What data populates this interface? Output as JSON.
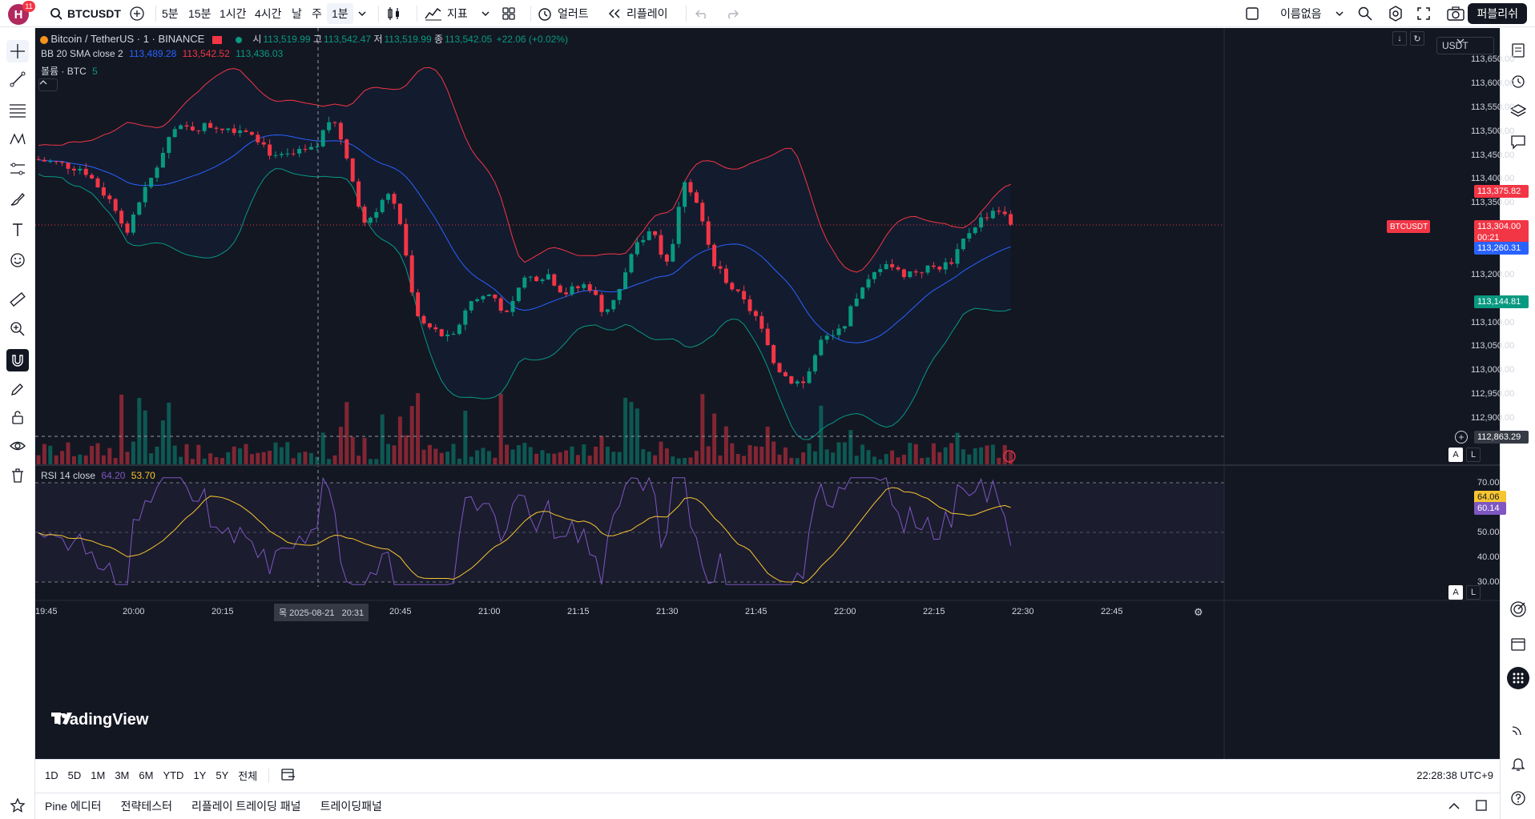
{
  "topbar": {
    "avatar_letter": "H",
    "avatar_badge": "11",
    "symbol": "BTCUSDT",
    "timeframes": [
      "5분",
      "15분",
      "1시간",
      "4시간",
      "날",
      "주",
      "1분"
    ],
    "indicators_label": "지표",
    "alert_label": "얼러트",
    "replay_label": "리플레이",
    "layout_name": "이름없음",
    "publish_label": "퍼블리쉬"
  },
  "legend": {
    "title": "Bitcoin / TetherUS · 1 · BINANCE",
    "o_label": "시",
    "o_value": "113,519.99",
    "h_label": "고",
    "h_value": "113,542.47",
    "l_label": "저",
    "l_value": "113,519.99",
    "c_label": "종",
    "c_value": "113,542.05",
    "change": "+22.06 (+0.02%)",
    "bb_label": "BB 20 SMA close 2",
    "bb_basis": "113,489.28",
    "bb_upper": "113,542.52",
    "bb_lower": "113,436.03",
    "vol_label": "볼륨 · BTC",
    "vol_value": "5",
    "rsi_label": "RSI 14 close",
    "rsi_value": "64.20",
    "rsi_ma_value": "53.70"
  },
  "currency": "USDT",
  "price_axis": [
    "113,650.00",
    "113,600.00",
    "113,550.00",
    "113,500.00",
    "113,450.00",
    "113,400.00",
    "113,350.00",
    "113,200.00",
    "113,100.00",
    "113,050.00",
    "113,000.00",
    "112,950.00",
    "112,900.00"
  ],
  "price_tags": {
    "upper_band": "113,375.82",
    "symbol_tag": "BTCUSDT",
    "last_price": "113,304.00",
    "countdown": "00:21",
    "basis": "113,260.31",
    "lower_band": "113,144.81",
    "crosshair": "112,863.29"
  },
  "rsi_axis": [
    "70.00",
    "50.00",
    "40.00",
    "30.00"
  ],
  "rsi_tags": {
    "ma": "64.06",
    "rsi": "60.14"
  },
  "time_axis": [
    "19:45",
    "20:00",
    "20:15",
    "20:45",
    "21:00",
    "21:15",
    "21:30",
    "21:45",
    "22:00",
    "22:15",
    "22:30",
    "22:45"
  ],
  "crosshair_time": "목 2025-08-21   20:31",
  "tv_logo": "TradingView",
  "scale_buttons": {
    "auto": "A",
    "log": "L"
  },
  "ranges": [
    "1D",
    "5D",
    "1M",
    "3M",
    "6M",
    "YTD",
    "1Y",
    "5Y",
    "전체"
  ],
  "clock": "22:28:38 UTC+9",
  "bottom_tabs": [
    "Pine 에디터",
    "전략테스터",
    "리플레이 트레이딩 패널",
    "트레이딩패널"
  ],
  "colors": {
    "up": "#089981",
    "down": "#f23645",
    "basis": "#2962ff",
    "rsi": "#7e57c2",
    "rsi_ma": "#f7c530"
  }
}
